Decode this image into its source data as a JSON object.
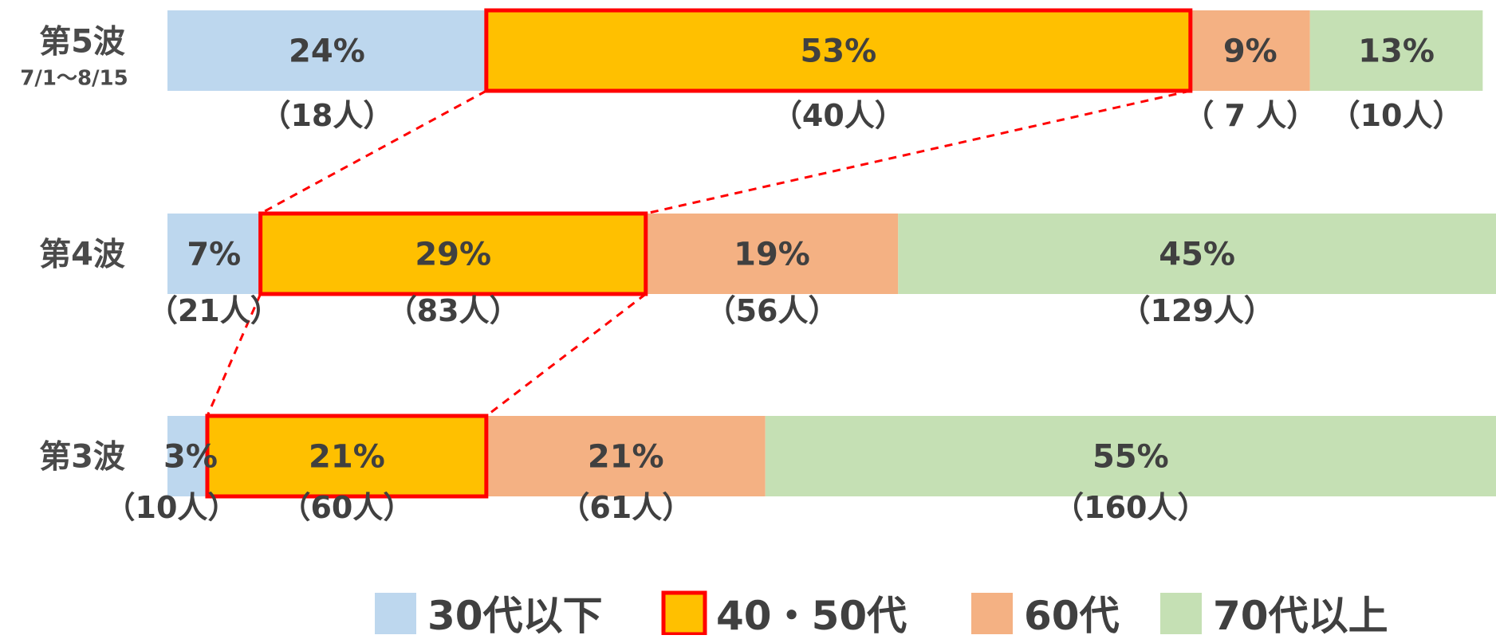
{
  "chart_data": {
    "type": "bar",
    "orientation": "horizontal",
    "stacked": "percent",
    "categories": [
      {
        "label": "第5波",
        "sublabel": "7/1～8/15"
      },
      {
        "label": "第4波",
        "sublabel": ""
      },
      {
        "label": "第3波",
        "sublabel": ""
      }
    ],
    "series": [
      {
        "name": "30代以下",
        "color": "#BDD7EE",
        "values": [
          24,
          7,
          3
        ],
        "value_labels": [
          "24%",
          "7%",
          "3%"
        ],
        "counts": [
          "（18人）",
          "（21人）",
          "（10人）"
        ]
      },
      {
        "name": "40・50代",
        "color": "#FFC000",
        "border": "#FF0000",
        "values": [
          53,
          29,
          21
        ],
        "value_labels": [
          "53%",
          "29%",
          "21%"
        ],
        "counts": [
          "（40人）",
          "（83人）",
          "（60人）"
        ]
      },
      {
        "name": "60代",
        "color": "#F4B183",
        "values": [
          9,
          19,
          21
        ],
        "value_labels": [
          "9%",
          "19%",
          "21%"
        ],
        "counts": [
          "（ 7 人）",
          "（56人）",
          "（61人）"
        ]
      },
      {
        "name": "70代以上",
        "color": "#C5E0B4",
        "values": [
          13,
          45,
          55
        ],
        "value_labels": [
          "13%",
          "45%",
          "55%"
        ],
        "counts": [
          "（10人）",
          "（129人）",
          "（160人）"
        ]
      }
    ],
    "legend_position": "bottom",
    "legend_labels": [
      "30代以下",
      "40・50代",
      "60代",
      "70代以上"
    ],
    "highlight_series": "40・50代",
    "connector_color": "#FF0000",
    "connector_style": "dashed",
    "grid": false,
    "xlim": [
      0,
      100
    ]
  }
}
